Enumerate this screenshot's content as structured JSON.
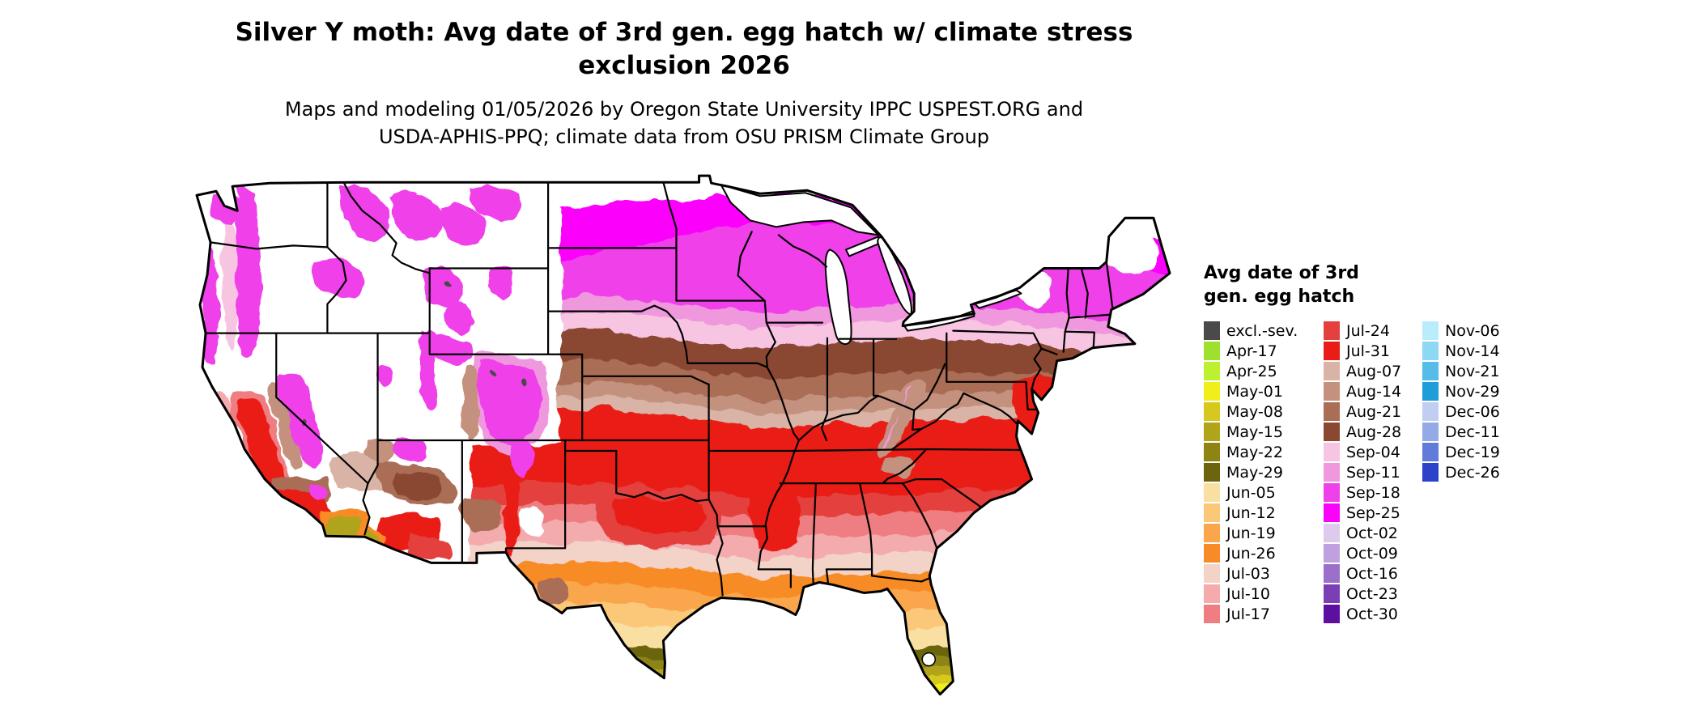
{
  "header": {
    "title_line1": "Silver Y moth: Avg date of 3rd gen. egg hatch w/ climate stress",
    "title_line2": "exclusion 2026",
    "subtitle_line1": "Maps and modeling 01/05/2026 by Oregon State University IPPC USPEST.ORG and",
    "subtitle_line2": "USDA-APHIS-PPQ; climate data from OSU PRISM Climate Group"
  },
  "legend": {
    "title_line1": "Avg date of 3rd",
    "title_line2": "gen. egg hatch",
    "columns": [
      [
        {
          "label": "excl.-sev.",
          "color": "#4a4a4a"
        },
        {
          "label": "Apr-17",
          "color": "#9fdf2e"
        },
        {
          "label": "Apr-25",
          "color": "#bdf02f"
        },
        {
          "label": "May-01",
          "color": "#f0ef1c"
        },
        {
          "label": "May-08",
          "color": "#d6c81d"
        },
        {
          "label": "May-15",
          "color": "#b0a41a"
        },
        {
          "label": "May-22",
          "color": "#8d8414"
        },
        {
          "label": "May-29",
          "color": "#6b650f"
        },
        {
          "label": "Jun-05",
          "color": "#fadfa3"
        },
        {
          "label": "Jun-12",
          "color": "#fbc779"
        },
        {
          "label": "Jun-19",
          "color": "#f9a64d"
        },
        {
          "label": "Jun-26",
          "color": "#f78b28"
        },
        {
          "label": "Jul-03",
          "color": "#f3d3c8"
        },
        {
          "label": "Jul-10",
          "color": "#f3abae"
        },
        {
          "label": "Jul-17",
          "color": "#ee7e81"
        }
      ],
      [
        {
          "label": "Jul-24",
          "color": "#e4403d"
        },
        {
          "label": "Jul-31",
          "color": "#ea1c17"
        },
        {
          "label": "Aug-07",
          "color": "#d9b3a6"
        },
        {
          "label": "Aug-14",
          "color": "#c3917d"
        },
        {
          "label": "Aug-21",
          "color": "#aa6d55"
        },
        {
          "label": "Aug-28",
          "color": "#8a4732"
        },
        {
          "label": "Sep-04",
          "color": "#f7c5e1"
        },
        {
          "label": "Sep-11",
          "color": "#f098de"
        },
        {
          "label": "Sep-18",
          "color": "#ef41ea"
        },
        {
          "label": "Sep-25",
          "color": "#fb02fb"
        },
        {
          "label": "Oct-02",
          "color": "#ddcaed"
        },
        {
          "label": "Oct-09",
          "color": "#bea1de"
        },
        {
          "label": "Oct-16",
          "color": "#9b70ca"
        },
        {
          "label": "Oct-23",
          "color": "#7b3fb5"
        },
        {
          "label": "Oct-30",
          "color": "#5d109f"
        }
      ],
      [
        {
          "label": "Nov-06",
          "color": "#baedfb"
        },
        {
          "label": "Nov-14",
          "color": "#8fd8f3"
        },
        {
          "label": "Nov-21",
          "color": "#56bde9"
        },
        {
          "label": "Nov-29",
          "color": "#1f9dd9"
        },
        {
          "label": "Dec-06",
          "color": "#c1cef1"
        },
        {
          "label": "Dec-11",
          "color": "#94aae7"
        },
        {
          "label": "Dec-19",
          "color": "#607bd9"
        },
        {
          "label": "Dec-26",
          "color": "#2b42c9"
        }
      ]
    ]
  }
}
